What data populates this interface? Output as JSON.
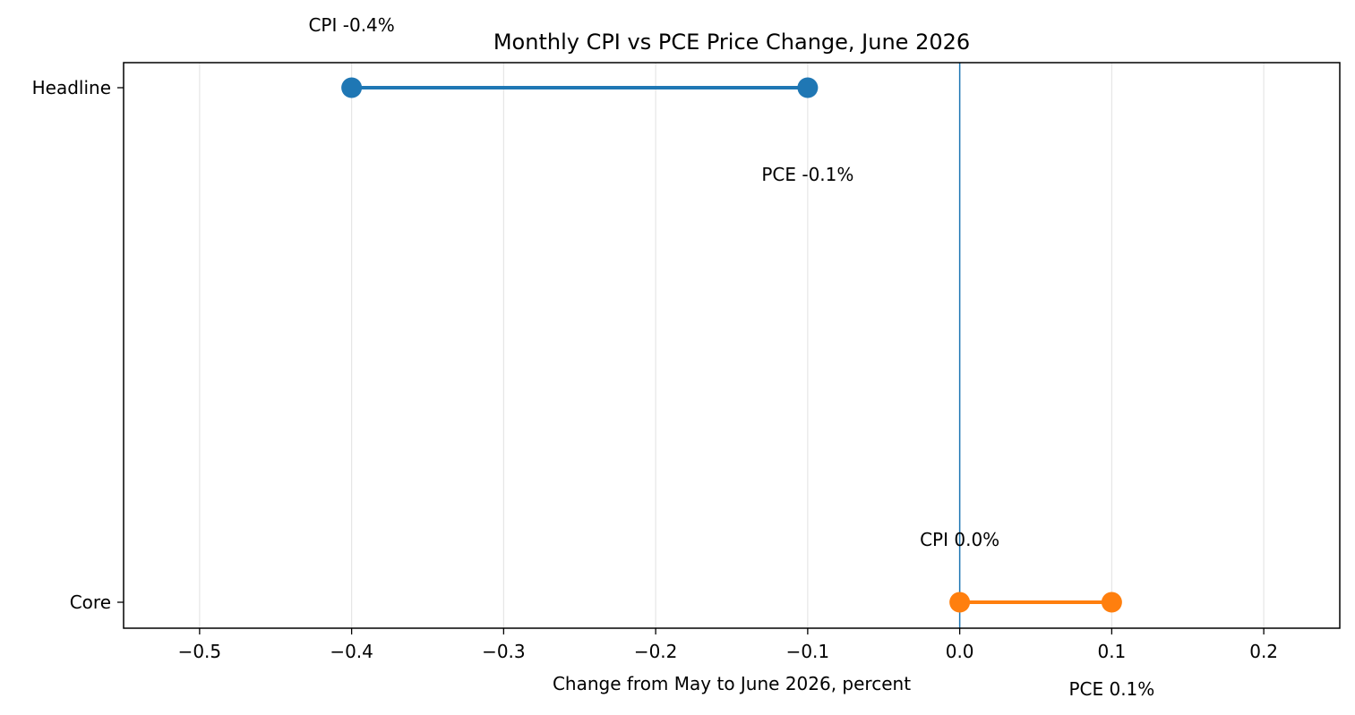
{
  "chart_data": {
    "type": "dumbbell",
    "title": "Monthly CPI vs PCE Price Change, June 2026",
    "xlabel": "Change from May to June 2026, percent",
    "ylabel": "",
    "xlim": [
      -0.55,
      0.25
    ],
    "xticks": [
      -0.5,
      -0.4,
      -0.3,
      -0.2,
      -0.1,
      0.0,
      0.1,
      0.2
    ],
    "xtick_labels": [
      "−0.5",
      "−0.4",
      "−0.3",
      "−0.2",
      "−0.1",
      "0.0",
      "0.1",
      "0.2"
    ],
    "categories": [
      "Headline",
      "Core"
    ],
    "grid": "x-only",
    "reference_line_x": 0.0,
    "rows": [
      {
        "category": "Headline",
        "cpi": -0.4,
        "pce": -0.1,
        "color": "#1f77b4",
        "cpi_label": "CPI -0.4%",
        "pce_label": "PCE -0.1%"
      },
      {
        "category": "Core",
        "cpi": 0.0,
        "pce": 0.1,
        "color": "#ff7f0e",
        "cpi_label": "CPI 0.0%",
        "pce_label": "PCE 0.1%"
      }
    ]
  }
}
